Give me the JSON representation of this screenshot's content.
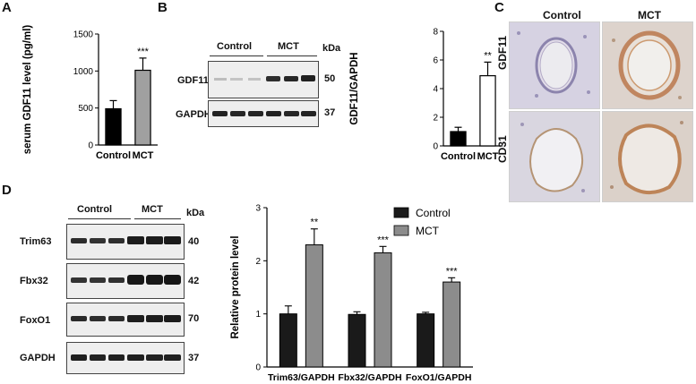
{
  "panels": {
    "A": "A",
    "B": "B",
    "C": "C",
    "D": "D"
  },
  "chart_data": [
    {
      "panel": "A",
      "type": "bar",
      "categories": [
        "Control",
        "MCT"
      ],
      "values": [
        490,
        1010
      ],
      "errors": [
        110,
        165
      ],
      "significance": [
        "",
        "***"
      ],
      "ylabel": "serum GDF11 level (pg/ml)",
      "ylim": [
        0,
        1500
      ],
      "yticks": [
        0,
        500,
        1000,
        1500
      ],
      "colors": [
        "#000000",
        "#a0a0a0"
      ]
    },
    {
      "panel": "B",
      "type": "bar",
      "categories": [
        "Control",
        "MCT"
      ],
      "values": [
        1.0,
        4.9
      ],
      "errors": [
        0.3,
        0.95
      ],
      "significance": [
        "",
        "**"
      ],
      "ylabel": "GDF11/GAPDH",
      "ylim": [
        0,
        8
      ],
      "yticks": [
        0,
        2,
        4,
        6,
        8
      ],
      "colors": [
        "#000000",
        "#ffffff"
      ]
    },
    {
      "panel": "D",
      "type": "bar",
      "categories": [
        "Trim63/GAPDH",
        "Fbx32/GAPDH",
        "FoxO1/GAPDH"
      ],
      "series": [
        {
          "name": "Control",
          "values": [
            1.0,
            0.99,
            1.0
          ],
          "errors": [
            0.15,
            0.05,
            0.03
          ],
          "color": "#1a1a1a"
        },
        {
          "name": "MCT",
          "values": [
            2.3,
            2.15,
            1.6
          ],
          "errors": [
            0.3,
            0.12,
            0.08
          ],
          "color": "#8c8c8c",
          "significance": [
            "**",
            "***",
            "***"
          ]
        }
      ],
      "ylabel": "Relative protein level",
      "ylim": [
        0,
        3
      ],
      "yticks": [
        0,
        1,
        2,
        3
      ],
      "legend": "top-right"
    }
  ],
  "blotB": {
    "groups": [
      "Control",
      "MCT"
    ],
    "kda_label": "kDa",
    "rows": [
      {
        "name": "GDF11",
        "kda": "50"
      },
      {
        "name": "GAPDH",
        "kda": "37"
      }
    ]
  },
  "blotD": {
    "groups": [
      "Control",
      "MCT"
    ],
    "kda_label": "kDa",
    "rows": [
      {
        "name": "Trim63",
        "kda": "40"
      },
      {
        "name": "Fbx32",
        "kda": "42"
      },
      {
        "name": "FoxO1",
        "kda": "70"
      },
      {
        "name": "GAPDH",
        "kda": "37"
      }
    ]
  },
  "histology": {
    "columns": [
      "Control",
      "MCT"
    ],
    "rows": [
      "GDF11",
      "CD31"
    ]
  }
}
